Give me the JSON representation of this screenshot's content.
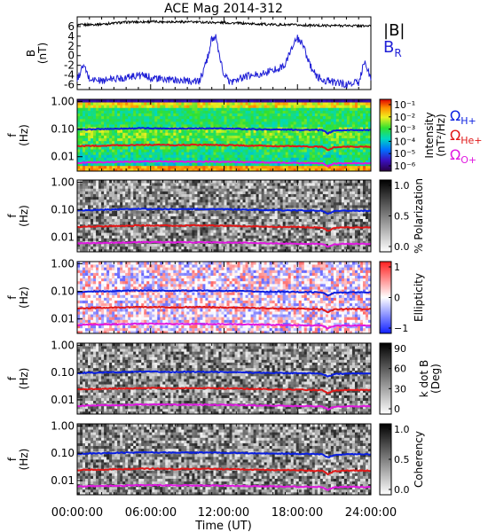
{
  "title": "ACE Mag 2014-312",
  "xlabel": "Time (UT)",
  "x_ticks": [
    "00:00:00",
    "06:00:00",
    "12:00:00",
    "18:00:00",
    "24:00:00"
  ],
  "colors": {
    "b_total": "#000000",
    "b_r": "#1f1fd6",
    "h_plus": "#0a1fe0",
    "he_plus": "#e01818",
    "o_plus": "#e018e0"
  },
  "chart_data": [
    {
      "type": "line",
      "panel": "magnetic-field",
      "ylabel": "B\n(nT)",
      "ylim": [
        -7,
        8
      ],
      "y_ticks": [
        "6",
        "4",
        "2",
        "0",
        "-2",
        "-4",
        "-6"
      ],
      "x_range_hours": [
        0,
        24
      ],
      "legend": [
        "|B|",
        "B_R"
      ],
      "series": [
        {
          "name": "|B|",
          "x_hours": [
            0,
            2,
            4,
            6,
            8,
            10,
            12,
            14,
            16,
            18,
            20,
            22,
            24
          ],
          "values": [
            6.3,
            6.5,
            6.9,
            7.0,
            7.0,
            6.9,
            6.8,
            6.6,
            6.4,
            6.3,
            6.2,
            6.2,
            6.1
          ]
        },
        {
          "name": "B_R",
          "x_hours": [
            0,
            0.5,
            1,
            2,
            3,
            4,
            5,
            6,
            7,
            8,
            9,
            10,
            10.6,
            11,
            11.3,
            11.6,
            12,
            12.5,
            13,
            14,
            15,
            16,
            17,
            17.5,
            18,
            18.5,
            19,
            19.5,
            20,
            21,
            22,
            23,
            23.5,
            24
          ],
          "values": [
            -5.0,
            -2.0,
            -4.8,
            -5.2,
            -4.8,
            -4.5,
            -4.0,
            -4.5,
            -5.0,
            -5.0,
            -5.2,
            -5.3,
            -1.0,
            3.5,
            4.0,
            0.0,
            -4.0,
            -5.5,
            -5.0,
            -4.2,
            -3.8,
            -3.0,
            -2.0,
            1.5,
            3.5,
            2.0,
            -2.0,
            -4.0,
            -5.0,
            -5.5,
            -6.0,
            -5.5,
            -1.0,
            -5.0
          ]
        }
      ]
    },
    {
      "type": "heatmap",
      "panel": "intensity",
      "ylabel": "f\n(Hz)",
      "y_scale": "log",
      "ylim": [
        0.003,
        1.2
      ],
      "y_ticks": [
        "1.00",
        "0.10",
        "0.01"
      ],
      "colorbar_label": "Intensity\n(nT²/Hz)",
      "colorbar_ticks": [
        "10⁻¹",
        "10⁻²",
        "10⁻³",
        "10⁻⁴",
        "10⁻⁵",
        "10⁻⁶"
      ],
      "gyrofrequency_legend": [
        "Ω_H+",
        "Ω_He+",
        "Ω_O+"
      ]
    },
    {
      "type": "heatmap",
      "panel": "polarization",
      "ylabel": "f\n(Hz)",
      "y_scale": "log",
      "ylim": [
        0.003,
        1.2
      ],
      "y_ticks": [
        "1.00",
        "0.10",
        "0.01"
      ],
      "colorbar_label": "% Polarization",
      "colorbar_ticks": [
        "1.0",
        "0.5",
        "0.0"
      ]
    },
    {
      "type": "heatmap",
      "panel": "ellipticity",
      "ylabel": "f\n(Hz)",
      "y_scale": "log",
      "ylim": [
        0.003,
        1.2
      ],
      "y_ticks": [
        "1.00",
        "0.10",
        "0.01"
      ],
      "colorbar_label": "Ellipticity",
      "colorbar_ticks": [
        "1",
        "0",
        "−1"
      ]
    },
    {
      "type": "heatmap",
      "panel": "k-dot-b",
      "ylabel": "f\n(Hz)",
      "y_scale": "log",
      "ylim": [
        0.003,
        1.2
      ],
      "y_ticks": [
        "1.00",
        "0.10",
        "0.01"
      ],
      "colorbar_label": "k dot B\n(Deg)",
      "colorbar_ticks": [
        "90",
        "60",
        "30",
        "0"
      ]
    },
    {
      "type": "heatmap",
      "panel": "coherency",
      "ylabel": "f\n(Hz)",
      "y_scale": "log",
      "ylim": [
        0.003,
        1.2
      ],
      "y_ticks": [
        "1.00",
        "0.10",
        "0.01"
      ],
      "colorbar_label": "Coherency",
      "colorbar_ticks": [
        "1.0",
        "0.5",
        "0.0"
      ]
    }
  ],
  "gyrofrequencies": {
    "x_hours": [
      0,
      1,
      2,
      3,
      4,
      5,
      6,
      7,
      8,
      9,
      10,
      11,
      12,
      13,
      14,
      15,
      16,
      17,
      18,
      19,
      20,
      20.5,
      21,
      22,
      23,
      24
    ],
    "H+": [
      0.095,
      0.098,
      0.1,
      0.103,
      0.105,
      0.107,
      0.107,
      0.106,
      0.105,
      0.106,
      0.106,
      0.106,
      0.104,
      0.103,
      0.1,
      0.098,
      0.097,
      0.096,
      0.095,
      0.094,
      0.092,
      0.07,
      0.088,
      0.092,
      0.093,
      0.092
    ],
    "He+": [
      0.024,
      0.025,
      0.025,
      0.026,
      0.026,
      0.027,
      0.027,
      0.027,
      0.026,
      0.027,
      0.027,
      0.027,
      0.026,
      0.026,
      0.025,
      0.025,
      0.024,
      0.024,
      0.024,
      0.023,
      0.023,
      0.017,
      0.022,
      0.023,
      0.023,
      0.023
    ],
    "O+": [
      0.006,
      0.0062,
      0.0063,
      0.0064,
      0.0065,
      0.0067,
      0.0067,
      0.0067,
      0.0066,
      0.0066,
      0.0066,
      0.0066,
      0.0065,
      0.0064,
      0.0063,
      0.0062,
      0.0061,
      0.006,
      0.0059,
      0.0059,
      0.0058,
      0.0045,
      0.0056,
      0.0058,
      0.0058,
      0.0058
    ]
  }
}
